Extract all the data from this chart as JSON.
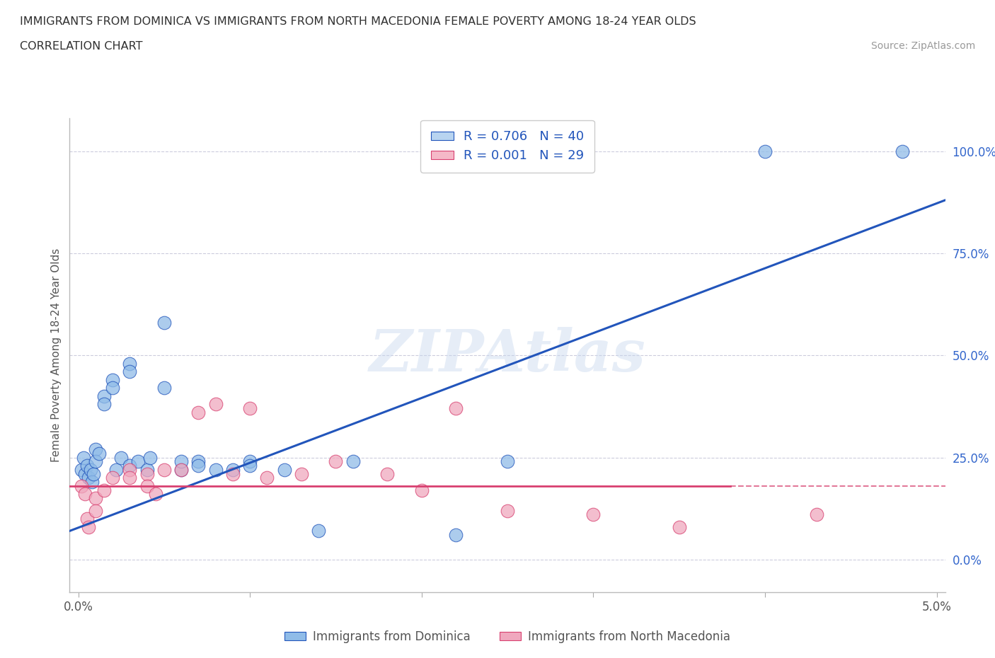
{
  "title_line1": "IMMIGRANTS FROM DOMINICA VS IMMIGRANTS FROM NORTH MACEDONIA FEMALE POVERTY AMONG 18-24 YEAR OLDS",
  "title_line2": "CORRELATION CHART",
  "source": "Source: ZipAtlas.com",
  "ylabel": "Female Poverty Among 18-24 Year Olds",
  "watermark": "ZIPAtlas",
  "legend_entries": [
    {
      "label": "R = 0.706   N = 40",
      "color": "#b8d4f0"
    },
    {
      "label": "R = 0.001   N = 29",
      "color": "#f5b8c8"
    }
  ],
  "series1_label": "Immigrants from Dominica",
  "series2_label": "Immigrants from North Macedonia",
  "series1_color": "#90bce8",
  "series2_color": "#f0a8be",
  "trendline1_color": "#2255bb",
  "trendline2_color": "#d84070",
  "xlim": [
    -0.0005,
    0.0505
  ],
  "ylim": [
    -0.08,
    1.08
  ],
  "x_ticks": [
    0.0,
    0.01,
    0.02,
    0.03,
    0.04,
    0.05
  ],
  "x_tick_labels": [
    "0.0%",
    "",
    "",
    "",
    "",
    "5.0%"
  ],
  "y_ticks_right": [
    0.0,
    0.25,
    0.5,
    0.75,
    1.0
  ],
  "y_tick_labels_right": [
    "0.0%",
    "25.0%",
    "50.0%",
    "75.0%",
    "100.0%"
  ],
  "blue_dots": [
    [
      0.0002,
      0.22
    ],
    [
      0.0003,
      0.25
    ],
    [
      0.0004,
      0.21
    ],
    [
      0.0005,
      0.23
    ],
    [
      0.0006,
      0.2
    ],
    [
      0.0007,
      0.22
    ],
    [
      0.0008,
      0.19
    ],
    [
      0.0009,
      0.21
    ],
    [
      0.001,
      0.27
    ],
    [
      0.001,
      0.24
    ],
    [
      0.0012,
      0.26
    ],
    [
      0.0015,
      0.4
    ],
    [
      0.0015,
      0.38
    ],
    [
      0.002,
      0.44
    ],
    [
      0.002,
      0.42
    ],
    [
      0.0022,
      0.22
    ],
    [
      0.0025,
      0.25
    ],
    [
      0.003,
      0.48
    ],
    [
      0.003,
      0.46
    ],
    [
      0.003,
      0.23
    ],
    [
      0.0035,
      0.24
    ],
    [
      0.004,
      0.22
    ],
    [
      0.0042,
      0.25
    ],
    [
      0.005,
      0.58
    ],
    [
      0.005,
      0.42
    ],
    [
      0.006,
      0.22
    ],
    [
      0.006,
      0.24
    ],
    [
      0.007,
      0.24
    ],
    [
      0.007,
      0.23
    ],
    [
      0.008,
      0.22
    ],
    [
      0.009,
      0.22
    ],
    [
      0.01,
      0.24
    ],
    [
      0.01,
      0.23
    ],
    [
      0.012,
      0.22
    ],
    [
      0.014,
      0.07
    ],
    [
      0.016,
      0.24
    ],
    [
      0.022,
      0.06
    ],
    [
      0.025,
      0.24
    ],
    [
      0.04,
      1.0
    ],
    [
      0.048,
      1.0
    ]
  ],
  "pink_dots": [
    [
      0.0002,
      0.18
    ],
    [
      0.0004,
      0.16
    ],
    [
      0.0005,
      0.1
    ],
    [
      0.0006,
      0.08
    ],
    [
      0.001,
      0.15
    ],
    [
      0.001,
      0.12
    ],
    [
      0.0015,
      0.17
    ],
    [
      0.002,
      0.2
    ],
    [
      0.003,
      0.22
    ],
    [
      0.003,
      0.2
    ],
    [
      0.004,
      0.21
    ],
    [
      0.004,
      0.18
    ],
    [
      0.0045,
      0.16
    ],
    [
      0.005,
      0.22
    ],
    [
      0.006,
      0.22
    ],
    [
      0.007,
      0.36
    ],
    [
      0.008,
      0.38
    ],
    [
      0.009,
      0.21
    ],
    [
      0.01,
      0.37
    ],
    [
      0.011,
      0.2
    ],
    [
      0.013,
      0.21
    ],
    [
      0.015,
      0.24
    ],
    [
      0.018,
      0.21
    ],
    [
      0.02,
      0.17
    ],
    [
      0.022,
      0.37
    ],
    [
      0.025,
      0.12
    ],
    [
      0.03,
      0.11
    ],
    [
      0.035,
      0.08
    ],
    [
      0.043,
      0.11
    ]
  ],
  "trendline1_x": [
    -0.0005,
    0.0505
  ],
  "trendline1_y": [
    0.07,
    0.88
  ],
  "trendline2_y": 0.18,
  "trendline2_solid_end": 0.038,
  "background_color": "#ffffff",
  "grid_color": "#ccccdd",
  "title_color": "#303030",
  "axis_color": "#555555",
  "right_axis_color": "#3366cc"
}
